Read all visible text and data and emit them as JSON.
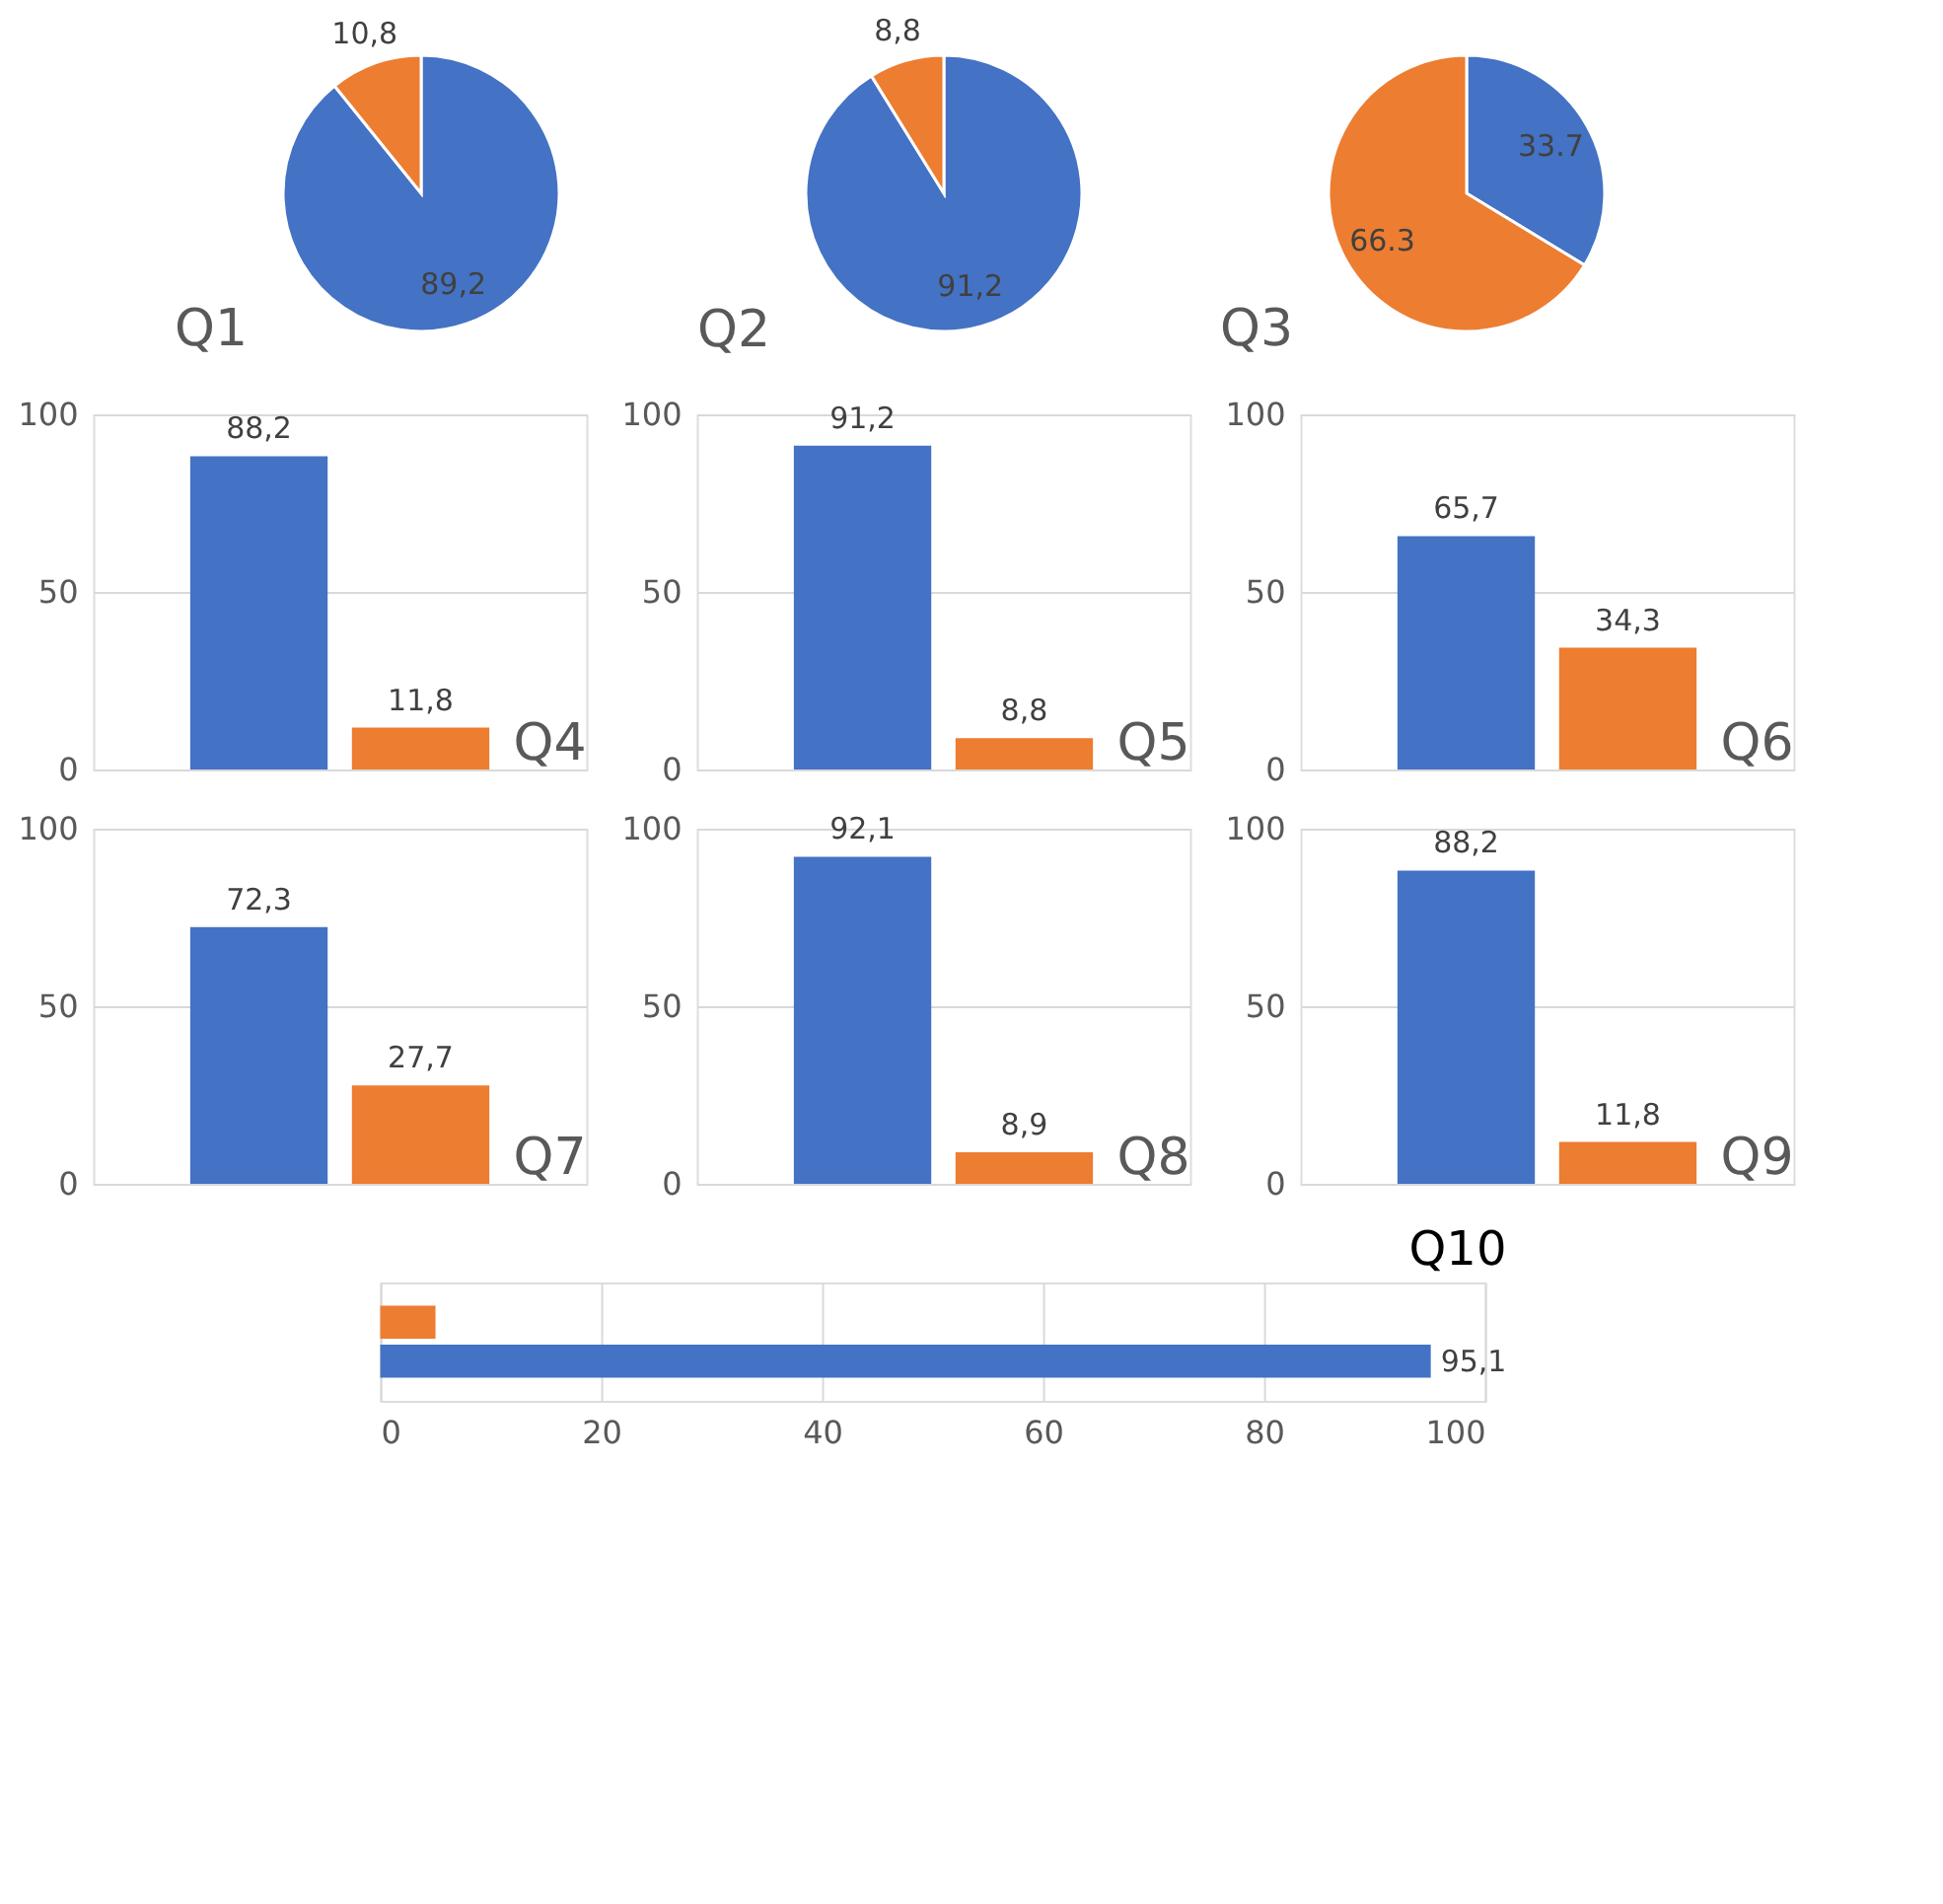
{
  "chart_data": [
    {
      "type": "pie",
      "title": "Q1",
      "categories": [
        null,
        null
      ],
      "values": [
        89.2,
        10.8
      ],
      "colors": [
        "#4472c4",
        "#ed7d31"
      ],
      "value_labels": [
        "89,2",
        "10,8"
      ]
    },
    {
      "type": "pie",
      "title": "Q2",
      "categories": [
        null,
        null
      ],
      "values": [
        91.2,
        8.8
      ],
      "colors": [
        "#4472c4",
        "#ed7d31"
      ],
      "value_labels": [
        "91,2",
        "8,8"
      ]
    },
    {
      "type": "pie",
      "title": "Q3",
      "categories": [
        null,
        null
      ],
      "values": [
        33.7,
        66.3
      ],
      "colors": [
        "#4472c4",
        "#ed7d31"
      ],
      "value_labels": [
        "33.7",
        "66.3"
      ]
    },
    {
      "type": "bar",
      "title": "Q4",
      "categories": [
        null,
        null
      ],
      "values": [
        88.2,
        11.8
      ],
      "colors": [
        "#4472c4",
        "#ed7d31"
      ],
      "value_labels": [
        "88,2",
        "11,8"
      ],
      "ylim": [
        0,
        100
      ],
      "yticks": [
        0,
        50,
        100
      ],
      "grid": "y"
    },
    {
      "type": "bar",
      "title": "Q5",
      "categories": [
        null,
        null
      ],
      "values": [
        91.2,
        8.8
      ],
      "colors": [
        "#4472c4",
        "#ed7d31"
      ],
      "value_labels": [
        "91,2",
        "8,8"
      ],
      "ylim": [
        0,
        100
      ],
      "yticks": [
        0,
        50,
        100
      ],
      "grid": "y"
    },
    {
      "type": "bar",
      "title": "Q6",
      "categories": [
        null,
        null
      ],
      "values": [
        65.7,
        34.3
      ],
      "colors": [
        "#4472c4",
        "#ed7d31"
      ],
      "value_labels": [
        "65,7",
        "34,3"
      ],
      "ylim": [
        0,
        100
      ],
      "yticks": [
        0,
        50,
        100
      ],
      "grid": "y"
    },
    {
      "type": "bar",
      "title": "Q7",
      "categories": [
        null,
        null
      ],
      "values": [
        72.3,
        27.7
      ],
      "colors": [
        "#4472c4",
        "#ed7d31"
      ],
      "value_labels": [
        "72,3",
        "27,7"
      ],
      "ylim": [
        0,
        100
      ],
      "yticks": [
        0,
        50,
        100
      ],
      "grid": "y"
    },
    {
      "type": "bar",
      "title": "Q8",
      "categories": [
        null,
        null
      ],
      "values": [
        92.1,
        8.9
      ],
      "colors": [
        "#4472c4",
        "#ed7d31"
      ],
      "value_labels": [
        "92,1",
        "8,9"
      ],
      "ylim": [
        0,
        100
      ],
      "yticks": [
        0,
        50,
        100
      ],
      "grid": "y"
    },
    {
      "type": "bar",
      "title": "Q9",
      "categories": [
        null,
        null
      ],
      "values": [
        88.2,
        11.8
      ],
      "colors": [
        "#4472c4",
        "#ed7d31"
      ],
      "value_labels": [
        "88,2",
        "11,8"
      ],
      "ylim": [
        0,
        100
      ],
      "yticks": [
        0,
        50,
        100
      ],
      "grid": "y"
    },
    {
      "type": "bar",
      "orientation": "horizontal",
      "title": "Q10",
      "categories": [
        null,
        null
      ],
      "values": [
        5,
        95.1
      ],
      "colors": [
        "#ed7d31",
        "#4472c4"
      ],
      "value_labels": [
        null,
        "95,1"
      ],
      "xlim": [
        0,
        100
      ],
      "xticks": [
        0,
        20,
        40,
        60,
        80,
        100
      ],
      "grid": "x"
    }
  ]
}
